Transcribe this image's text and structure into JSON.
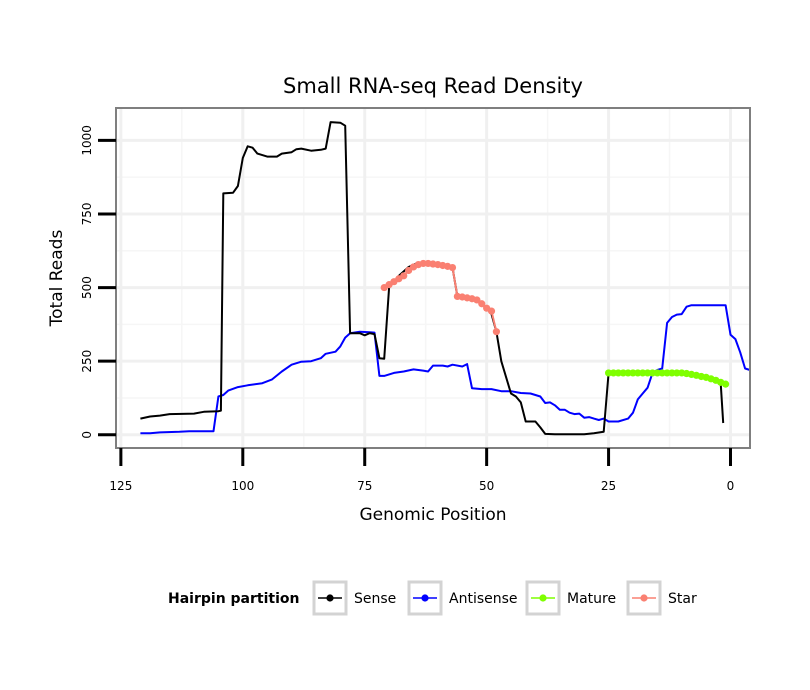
{
  "chart_data": {
    "type": "line",
    "title": "Small RNA-seq Read Density",
    "xlabel": "Genomic Position",
    "ylabel": "Total Reads",
    "xlim": [
      126,
      -4
    ],
    "ylim": [
      -45,
      1110
    ],
    "x_ticks": [
      125,
      100,
      75,
      50,
      25,
      0
    ],
    "x_tick_labels": [
      "125",
      "100",
      "75",
      "50",
      "25",
      "0"
    ],
    "y_ticks": [
      0,
      250,
      500,
      750,
      1000
    ],
    "y_tick_labels": [
      "0",
      "250",
      "500",
      "750",
      "1000"
    ],
    "grid": true,
    "legend": {
      "title": "Hairpin partition",
      "position": "bottom",
      "entries": [
        {
          "label": "Sense",
          "color": "#000000"
        },
        {
          "label": "Antisense",
          "color": "#0000ff"
        },
        {
          "label": "Mature",
          "color": "#7fff00"
        },
        {
          "label": "Star",
          "color": "#fa8072"
        }
      ]
    },
    "series": [
      {
        "name": "Sense",
        "color": "#000000",
        "points": [
          [
            121,
            55
          ],
          [
            119,
            62
          ],
          [
            117,
            65
          ],
          [
            115,
            70
          ],
          [
            110,
            72
          ],
          [
            108,
            78
          ],
          [
            105,
            80
          ],
          [
            104.5,
            82
          ],
          [
            104,
            820
          ],
          [
            102,
            822
          ],
          [
            101,
            845
          ],
          [
            100,
            940
          ],
          [
            99,
            980
          ],
          [
            98,
            975
          ],
          [
            97,
            955
          ],
          [
            95,
            945
          ],
          [
            93,
            945
          ],
          [
            92,
            955
          ],
          [
            90,
            960
          ],
          [
            89,
            970
          ],
          [
            88,
            972
          ],
          [
            86,
            965
          ],
          [
            84,
            968
          ],
          [
            83,
            972
          ],
          [
            82,
            1062
          ],
          [
            80,
            1060
          ],
          [
            79,
            1050
          ],
          [
            78,
            345
          ],
          [
            76,
            345
          ],
          [
            75,
            338
          ],
          [
            74,
            345
          ],
          [
            73,
            342
          ],
          [
            72,
            260
          ],
          [
            71,
            258
          ],
          [
            70,
            500
          ],
          [
            69,
            520
          ],
          [
            68,
            540
          ],
          [
            66,
            570
          ],
          [
            64,
            585
          ],
          [
            62,
            582
          ],
          [
            60,
            575
          ],
          [
            58,
            570
          ],
          [
            57,
            568
          ],
          [
            56,
            470
          ],
          [
            54,
            465
          ],
          [
            52,
            458
          ],
          [
            50,
            430
          ],
          [
            49,
            410
          ],
          [
            48,
            350
          ],
          [
            47,
            250
          ],
          [
            45,
            140
          ],
          [
            44,
            130
          ],
          [
            43,
            110
          ],
          [
            42,
            45
          ],
          [
            40,
            45
          ],
          [
            39,
            25
          ],
          [
            38,
            3
          ],
          [
            36,
            2
          ],
          [
            30,
            2
          ],
          [
            28,
            5
          ],
          [
            26,
            10
          ],
          [
            25,
            210
          ],
          [
            20,
            210
          ],
          [
            15,
            210
          ],
          [
            10,
            210
          ],
          [
            6,
            200
          ],
          [
            4,
            190
          ],
          [
            2,
            175
          ],
          [
            1.5,
            40
          ]
        ]
      },
      {
        "name": "Antisense",
        "color": "#0000ff",
        "points": [
          [
            121,
            5
          ],
          [
            119,
            5
          ],
          [
            117,
            8
          ],
          [
            113,
            10
          ],
          [
            111,
            12
          ],
          [
            106,
            12
          ],
          [
            105,
            130
          ],
          [
            104,
            135
          ],
          [
            103,
            150
          ],
          [
            101,
            162
          ],
          [
            99,
            168
          ],
          [
            96,
            175
          ],
          [
            94,
            188
          ],
          [
            92,
            215
          ],
          [
            90,
            238
          ],
          [
            88,
            248
          ],
          [
            86,
            250
          ],
          [
            84,
            260
          ],
          [
            83,
            275
          ],
          [
            81,
            282
          ],
          [
            80,
            300
          ],
          [
            79,
            330
          ],
          [
            78,
            345
          ],
          [
            76,
            350
          ],
          [
            74,
            348
          ],
          [
            73,
            347
          ],
          [
            72,
            200
          ],
          [
            71,
            200
          ],
          [
            69,
            210
          ],
          [
            67,
            215
          ],
          [
            65,
            222
          ],
          [
            63,
            218
          ],
          [
            62,
            215
          ],
          [
            61,
            235
          ],
          [
            59,
            235
          ],
          [
            58,
            232
          ],
          [
            57,
            238
          ],
          [
            55,
            232
          ],
          [
            54,
            240
          ],
          [
            53,
            158
          ],
          [
            51,
            155
          ],
          [
            49,
            155
          ],
          [
            47,
            148
          ],
          [
            45,
            148
          ],
          [
            43,
            142
          ],
          [
            41,
            140
          ],
          [
            39,
            130
          ],
          [
            38,
            108
          ],
          [
            37,
            110
          ],
          [
            36,
            100
          ],
          [
            35,
            85
          ],
          [
            34,
            85
          ],
          [
            33,
            75
          ],
          [
            32,
            70
          ],
          [
            31,
            72
          ],
          [
            30,
            58
          ],
          [
            29,
            60
          ],
          [
            28,
            55
          ],
          [
            27,
            50
          ],
          [
            26,
            55
          ],
          [
            25,
            45
          ],
          [
            23,
            45
          ],
          [
            21,
            55
          ],
          [
            20,
            75
          ],
          [
            19,
            120
          ],
          [
            18,
            140
          ],
          [
            17,
            160
          ],
          [
            16,
            210
          ],
          [
            15,
            220
          ],
          [
            14,
            225
          ],
          [
            13,
            380
          ],
          [
            12,
            400
          ],
          [
            11,
            408
          ],
          [
            10,
            410
          ],
          [
            9,
            435
          ],
          [
            8,
            440
          ],
          [
            6,
            440
          ],
          [
            4,
            440
          ],
          [
            2,
            440
          ],
          [
            1,
            440
          ],
          [
            0,
            340
          ],
          [
            -1,
            325
          ],
          [
            -2,
            280
          ],
          [
            -3,
            225
          ],
          [
            -4,
            220
          ]
        ]
      },
      {
        "name": "Mature",
        "color": "#7fff00",
        "points": [
          [
            25,
            210
          ],
          [
            24,
            210
          ],
          [
            23,
            210
          ],
          [
            22,
            210
          ],
          [
            21,
            210
          ],
          [
            20,
            210
          ],
          [
            19,
            210
          ],
          [
            18,
            210
          ],
          [
            17,
            210
          ],
          [
            16,
            210
          ],
          [
            15,
            210
          ],
          [
            14,
            210
          ],
          [
            13,
            210
          ],
          [
            12,
            210
          ],
          [
            11,
            210
          ],
          [
            10,
            210
          ],
          [
            9,
            208
          ],
          [
            8,
            205
          ],
          [
            7,
            202
          ],
          [
            6,
            198
          ],
          [
            5,
            195
          ],
          [
            4,
            190
          ],
          [
            3,
            185
          ],
          [
            2,
            178
          ],
          [
            1,
            172
          ]
        ]
      },
      {
        "name": "Star",
        "color": "#fa8072",
        "points": [
          [
            71,
            500
          ],
          [
            70,
            510
          ],
          [
            69,
            520
          ],
          [
            68,
            530
          ],
          [
            67,
            540
          ],
          [
            66,
            558
          ],
          [
            65,
            570
          ],
          [
            64,
            578
          ],
          [
            63,
            582
          ],
          [
            62,
            582
          ],
          [
            61,
            580
          ],
          [
            60,
            578
          ],
          [
            59,
            575
          ],
          [
            58,
            572
          ],
          [
            57,
            568
          ],
          [
            56,
            470
          ],
          [
            55,
            468
          ],
          [
            54,
            465
          ],
          [
            53,
            462
          ],
          [
            52,
            458
          ],
          [
            51,
            445
          ],
          [
            50,
            430
          ],
          [
            49,
            420
          ],
          [
            48,
            350
          ]
        ]
      }
    ]
  }
}
